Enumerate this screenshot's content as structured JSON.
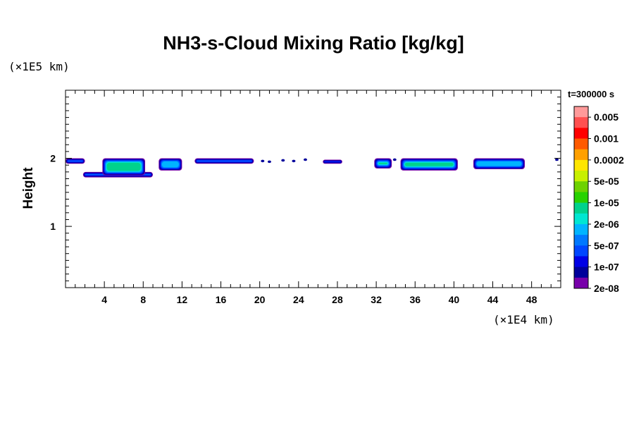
{
  "chart_data": {
    "type": "heatmap",
    "title": "NH3-s-Cloud Mixing Ratio [kg/kg]",
    "ylabel": "Height",
    "x_unit_label": "(×1E4 km)",
    "y_unit_label": "(×1E5 km)",
    "time_label": "t=300000 s",
    "xlim": [
      0,
      51
    ],
    "ylim": [
      0.1,
      3.0
    ],
    "x_ticks": [
      4,
      8,
      12,
      16,
      20,
      24,
      28,
      32,
      36,
      40,
      44,
      48
    ],
    "y_ticks": [
      1,
      2
    ],
    "colorbar": {
      "labels": [
        "0.005",
        "0.001",
        "0.0002",
        "5e-05",
        "1e-05",
        "2e-06",
        "5e-07",
        "1e-07",
        "2e-08"
      ],
      "colors": [
        "#ff9a9a",
        "#ff5050",
        "#ff0000",
        "#ff5a00",
        "#ffa000",
        "#ffe600",
        "#c8f000",
        "#6ed200",
        "#28d200",
        "#00d28c",
        "#00e6d2",
        "#00b4ff",
        "#0078ff",
        "#0046ff",
        "#0000e6",
        "#00009b",
        "#7800aa"
      ]
    },
    "cloud_patches": [
      {
        "x": [
          0.0,
          2.0
        ],
        "y": [
          1.92,
          2.0
        ],
        "level": "2e-06"
      },
      {
        "x": [
          1.8,
          9.0
        ],
        "y": [
          1.72,
          1.8
        ],
        "level": "5e-05"
      },
      {
        "x": [
          3.8,
          8.2
        ],
        "y": [
          1.75,
          2.0
        ],
        "level": "1e-05"
      },
      {
        "x": [
          9.6,
          12.0
        ],
        "y": [
          1.82,
          2.0
        ],
        "level": "2e-06"
      },
      {
        "x": [
          13.3,
          19.4
        ],
        "y": [
          1.92,
          2.0
        ],
        "level": "2e-06"
      },
      {
        "x": [
          26.5,
          28.5
        ],
        "y": [
          1.92,
          1.98
        ],
        "level": "5e-07"
      },
      {
        "x": [
          31.8,
          33.6
        ],
        "y": [
          1.85,
          2.0
        ],
        "level": "1e-05"
      },
      {
        "x": [
          34.5,
          40.4
        ],
        "y": [
          1.82,
          2.0
        ],
        "level": "1e-05"
      },
      {
        "x": [
          42.0,
          47.3
        ],
        "y": [
          1.84,
          2.0
        ],
        "level": "2e-06"
      }
    ]
  }
}
